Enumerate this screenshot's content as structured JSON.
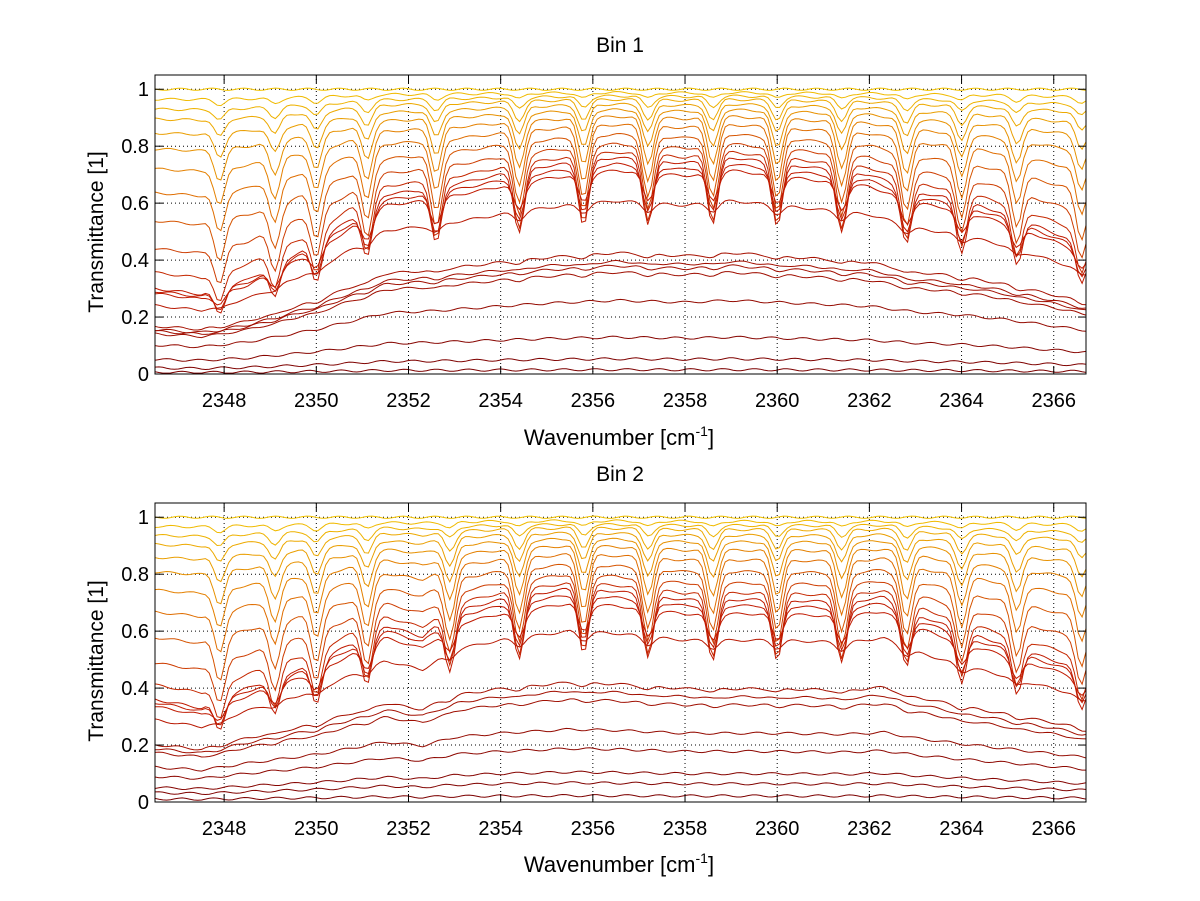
{
  "chart_data": [
    {
      "type": "line",
      "title": "Bin 1",
      "xlabel_main": "Wavenumber [cm",
      "xlabel_sup": "-1",
      "xlabel_end": "]",
      "ylabel": "Transmittance [1]",
      "xlim": [
        2346.5,
        2366.7
      ],
      "ylim": [
        0,
        1.05
      ],
      "xticks": [
        2348,
        2350,
        2352,
        2354,
        2356,
        2358,
        2360,
        2362,
        2364,
        2366
      ],
      "yticks": [
        0,
        0.2,
        0.4,
        0.6,
        0.8,
        1
      ],
      "grid": true,
      "series_profiles": {
        "x": [
          2346.5,
          2347.5,
          2348.5,
          2350,
          2351.5,
          2352.5,
          2354,
          2355,
          2356.5,
          2358,
          2359,
          2360.5,
          2362,
          2363,
          2364,
          2365,
          2366.7
        ],
        "shape": [
          0.3,
          0.28,
          0.33,
          0.46,
          0.63,
          0.65,
          0.7,
          0.73,
          0.76,
          0.74,
          0.76,
          0.73,
          0.7,
          0.64,
          0.61,
          0.56,
          0.45
        ],
        "valleys": [
          2347.9,
          2349.1,
          2350.0,
          2351.1,
          2352.6,
          2354.4,
          2355.8,
          2357.2,
          2358.6,
          2360.0,
          2361.4,
          2362.8,
          2364.0,
          2365.2,
          2366.6
        ]
      },
      "series": [
        {
          "scale": 1.0,
          "mix": 0.0,
          "depth": 0.0
        },
        {
          "scale": 1.0,
          "mix": 0.05,
          "depth": 0.02
        },
        {
          "scale": 1.0,
          "mix": 0.1,
          "depth": 0.04
        },
        {
          "scale": 1.0,
          "mix": 0.15,
          "depth": 0.07
        },
        {
          "scale": 1.0,
          "mix": 0.22,
          "depth": 0.1
        },
        {
          "scale": 1.0,
          "mix": 0.3,
          "depth": 0.14
        },
        {
          "scale": 1.0,
          "mix": 0.4,
          "depth": 0.18
        },
        {
          "scale": 1.0,
          "mix": 0.52,
          "depth": 0.22
        },
        {
          "scale": 1.0,
          "mix": 0.66,
          "depth": 0.26
        },
        {
          "scale": 1.0,
          "mix": 0.8,
          "depth": 0.28
        },
        {
          "scale": 1.0,
          "mix": 0.92,
          "depth": 0.3
        },
        {
          "scale": 1.0,
          "mix": 1.0,
          "depth": 0.3
        },
        {
          "scale": 0.97,
          "mix": 1.0,
          "depth": 0.22
        },
        {
          "scale": 0.94,
          "mix": 1.0,
          "depth": 0.14
        },
        {
          "scale": 0.8,
          "mix": 1.0,
          "depth": 0.05
        },
        {
          "scale": 0.56,
          "mix": 1.0,
          "depth": 0.03
        },
        {
          "scale": 0.52,
          "mix": 1.0,
          "depth": 0.02
        },
        {
          "scale": 0.5,
          "mix": 1.0,
          "depth": 0.02
        },
        {
          "scale": 0.47,
          "mix": 1.0,
          "depth": 0.02
        },
        {
          "scale": 0.34,
          "mix": 1.0,
          "depth": 0.0
        },
        {
          "scale": 0.17,
          "mix": 1.0,
          "depth": 0.0
        },
        {
          "scale": 0.07,
          "mix": 1.0,
          "depth": 0.0
        },
        {
          "scale": 0.02,
          "mix": 1.0,
          "depth": 0.0
        }
      ]
    },
    {
      "type": "line",
      "title": "Bin 2",
      "xlabel_main": "Wavenumber [cm",
      "xlabel_sup": "-1",
      "xlabel_end": "]",
      "ylabel": "Transmittance [1]",
      "xlim": [
        2346.5,
        2366.7
      ],
      "ylim": [
        0,
        1.05
      ],
      "xticks": [
        2348,
        2350,
        2352,
        2354,
        2356,
        2358,
        2360,
        2362,
        2364,
        2366
      ],
      "yticks": [
        0,
        0.2,
        0.4,
        0.6,
        0.8,
        1
      ],
      "grid": true,
      "series_profiles": {
        "x": [
          2346.5,
          2347.5,
          2348.5,
          2350,
          2351.5,
          2352.3,
          2353,
          2354,
          2355.5,
          2356.5,
          2358,
          2360,
          2361.5,
          2362.3,
          2363,
          2364,
          2365,
          2366.7
        ],
        "shape": [
          0.36,
          0.33,
          0.4,
          0.49,
          0.62,
          0.58,
          0.67,
          0.71,
          0.75,
          0.74,
          0.71,
          0.71,
          0.7,
          0.72,
          0.66,
          0.6,
          0.55,
          0.46
        ],
        "valleys": [
          2347.9,
          2349.1,
          2350.0,
          2351.1,
          2352.9,
          2354.4,
          2355.8,
          2357.2,
          2358.6,
          2360.0,
          2361.4,
          2362.8,
          2364.0,
          2365.2,
          2366.6
        ]
      },
      "series": [
        {
          "scale": 1.0,
          "mix": 0.0,
          "depth": 0.0
        },
        {
          "scale": 1.0,
          "mix": 0.05,
          "depth": 0.02
        },
        {
          "scale": 1.0,
          "mix": 0.1,
          "depth": 0.04
        },
        {
          "scale": 1.0,
          "mix": 0.15,
          "depth": 0.07
        },
        {
          "scale": 1.0,
          "mix": 0.22,
          "depth": 0.1
        },
        {
          "scale": 1.0,
          "mix": 0.3,
          "depth": 0.14
        },
        {
          "scale": 1.0,
          "mix": 0.4,
          "depth": 0.18
        },
        {
          "scale": 1.0,
          "mix": 0.52,
          "depth": 0.22
        },
        {
          "scale": 1.0,
          "mix": 0.66,
          "depth": 0.26
        },
        {
          "scale": 1.0,
          "mix": 0.8,
          "depth": 0.28
        },
        {
          "scale": 1.0,
          "mix": 0.92,
          "depth": 0.3
        },
        {
          "scale": 1.0,
          "mix": 1.0,
          "depth": 0.3
        },
        {
          "scale": 0.97,
          "mix": 1.0,
          "depth": 0.22
        },
        {
          "scale": 0.93,
          "mix": 1.0,
          "depth": 0.14
        },
        {
          "scale": 0.8,
          "mix": 1.0,
          "depth": 0.05
        },
        {
          "scale": 0.56,
          "mix": 1.0,
          "depth": 0.03
        },
        {
          "scale": 0.52,
          "mix": 1.0,
          "depth": 0.02
        },
        {
          "scale": 0.48,
          "mix": 1.0,
          "depth": 0.02
        },
        {
          "scale": 0.34,
          "mix": 1.0,
          "depth": 0.0
        },
        {
          "scale": 0.25,
          "mix": 1.0,
          "depth": 0.0
        },
        {
          "scale": 0.14,
          "mix": 1.0,
          "depth": 0.0
        },
        {
          "scale": 0.09,
          "mix": 1.0,
          "depth": 0.0
        },
        {
          "scale": 0.03,
          "mix": 1.0,
          "depth": 0.0
        }
      ]
    }
  ],
  "colors": {
    "background": "#ffffff",
    "axis": "#000000",
    "grid": "#000000",
    "near_unity": "#f2c200",
    "mid": "#e07000",
    "low": "#c01a00",
    "lowest": "#7a0000"
  }
}
